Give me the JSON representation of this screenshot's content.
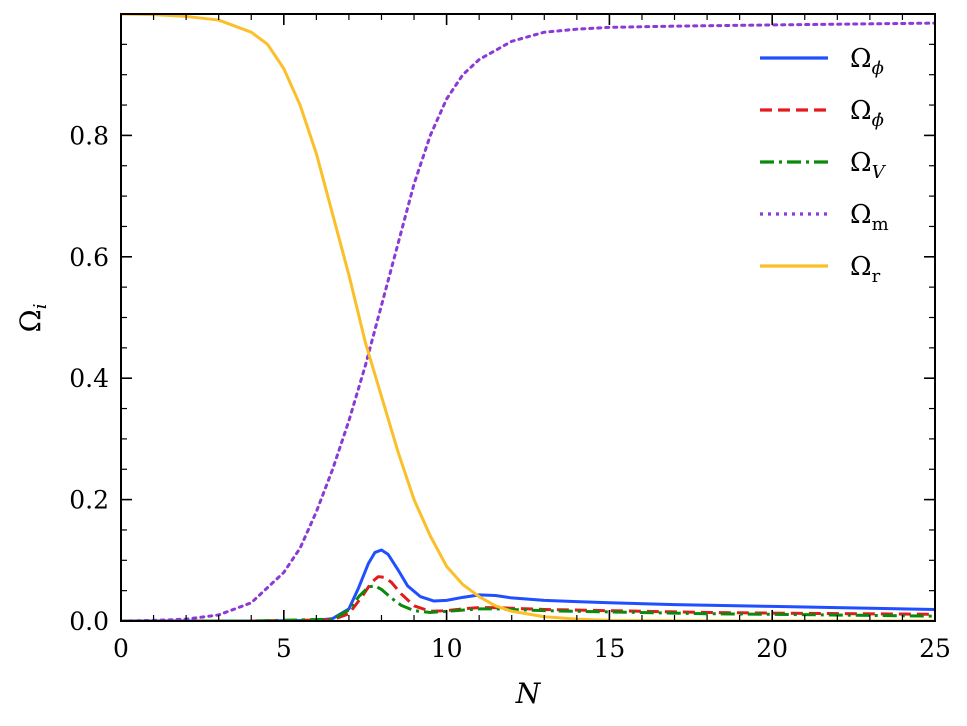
{
  "chart_data": {
    "type": "line",
    "title": "",
    "xlabel": "N",
    "ylabel": {
      "base": "Ω",
      "sub": "i"
    },
    "xlim": [
      0,
      25
    ],
    "ylim": [
      0,
      1.0
    ],
    "xticks": [
      0,
      5,
      10,
      15,
      20,
      25
    ],
    "xtick_labels": [
      "0",
      "5",
      "10",
      "15",
      "20",
      "25"
    ],
    "yticks": [
      0.0,
      0.2,
      0.4,
      0.6,
      0.8
    ],
    "ytick_labels": [
      "0.0",
      "0.2",
      "0.4",
      "0.6",
      "0.8"
    ],
    "grid": false,
    "legend_position": "top-right",
    "series": [
      {
        "name": "Ω_φ",
        "legend_base": "Ω",
        "legend_sub": "ϕ",
        "color": "#1f4fff",
        "style": "solid",
        "x": [
          0,
          4,
          6,
          6.5,
          7,
          7.3,
          7.6,
          7.8,
          8.0,
          8.2,
          8.5,
          8.8,
          9.2,
          9.6,
          10.0,
          10.5,
          11.0,
          11.5,
          12.0,
          13.0,
          14.0,
          15.0,
          17.0,
          20.0,
          22.0,
          25.0
        ],
        "y": [
          0,
          0,
          0.001,
          0.004,
          0.02,
          0.055,
          0.095,
          0.113,
          0.117,
          0.11,
          0.085,
          0.058,
          0.04,
          0.033,
          0.034,
          0.039,
          0.043,
          0.042,
          0.038,
          0.034,
          0.032,
          0.03,
          0.027,
          0.024,
          0.022,
          0.019
        ]
      },
      {
        "name": "Ω_φdot",
        "legend_base": "Ω",
        "legend_sub": "ϕ̇",
        "color": "#e41a1c",
        "style": "dashed",
        "x": [
          0,
          4,
          6.5,
          7,
          7.4,
          7.7,
          7.9,
          8.1,
          8.3,
          8.6,
          9.0,
          9.5,
          10.0,
          10.5,
          11.0,
          11.5,
          12.0,
          13.0,
          15.0,
          18.0,
          20.0,
          25.0
        ],
        "y": [
          0,
          0,
          0.002,
          0.012,
          0.04,
          0.064,
          0.073,
          0.072,
          0.064,
          0.045,
          0.025,
          0.016,
          0.017,
          0.02,
          0.022,
          0.022,
          0.021,
          0.019,
          0.017,
          0.014,
          0.013,
          0.011
        ]
      },
      {
        "name": "Ω_V",
        "legend_base": "Ω",
        "legend_sub": "V",
        "color": "#0a8a0a",
        "style": "dashdot",
        "x": [
          0,
          4,
          6.5,
          7,
          7.3,
          7.6,
          7.8,
          8.0,
          8.3,
          8.6,
          9.0,
          9.5,
          10.0,
          10.5,
          11.0,
          11.5,
          12.0,
          13.0,
          15.0,
          18.0,
          20.0,
          25.0
        ],
        "y": [
          0,
          0,
          0.003,
          0.018,
          0.04,
          0.056,
          0.058,
          0.052,
          0.038,
          0.026,
          0.017,
          0.014,
          0.016,
          0.018,
          0.02,
          0.02,
          0.019,
          0.017,
          0.015,
          0.012,
          0.011,
          0.008
        ]
      },
      {
        "name": "Ω_m",
        "legend_base": "Ω",
        "legend_sub": "m",
        "color": "#8a3ad6",
        "style": "dotted",
        "x": [
          0,
          1,
          2,
          3,
          4,
          5,
          5.5,
          6,
          6.5,
          7,
          7.5,
          8,
          8.5,
          9,
          9.5,
          10,
          10.5,
          11,
          12,
          13,
          14,
          15,
          17,
          20,
          25
        ],
        "y": [
          0,
          0.001,
          0.003,
          0.01,
          0.03,
          0.08,
          0.12,
          0.18,
          0.25,
          0.33,
          0.42,
          0.52,
          0.62,
          0.72,
          0.8,
          0.86,
          0.9,
          0.925,
          0.955,
          0.97,
          0.975,
          0.978,
          0.98,
          0.982,
          0.985
        ]
      },
      {
        "name": "Ω_r",
        "legend_base": "Ω",
        "legend_sub": "r",
        "color": "#fbbf2a",
        "style": "solid",
        "x": [
          0,
          1,
          2,
          3,
          4,
          4.5,
          5,
          5.5,
          6,
          6.5,
          7,
          7.5,
          8,
          8.5,
          9,
          9.5,
          10,
          10.5,
          11,
          11.5,
          12,
          13,
          14,
          15,
          17,
          20,
          25
        ],
        "y": [
          1.0,
          0.999,
          0.996,
          0.99,
          0.97,
          0.95,
          0.91,
          0.85,
          0.77,
          0.67,
          0.57,
          0.46,
          0.37,
          0.28,
          0.2,
          0.14,
          0.09,
          0.06,
          0.04,
          0.025,
          0.016,
          0.007,
          0.003,
          0.001,
          0.0005,
          0,
          0
        ]
      }
    ]
  }
}
